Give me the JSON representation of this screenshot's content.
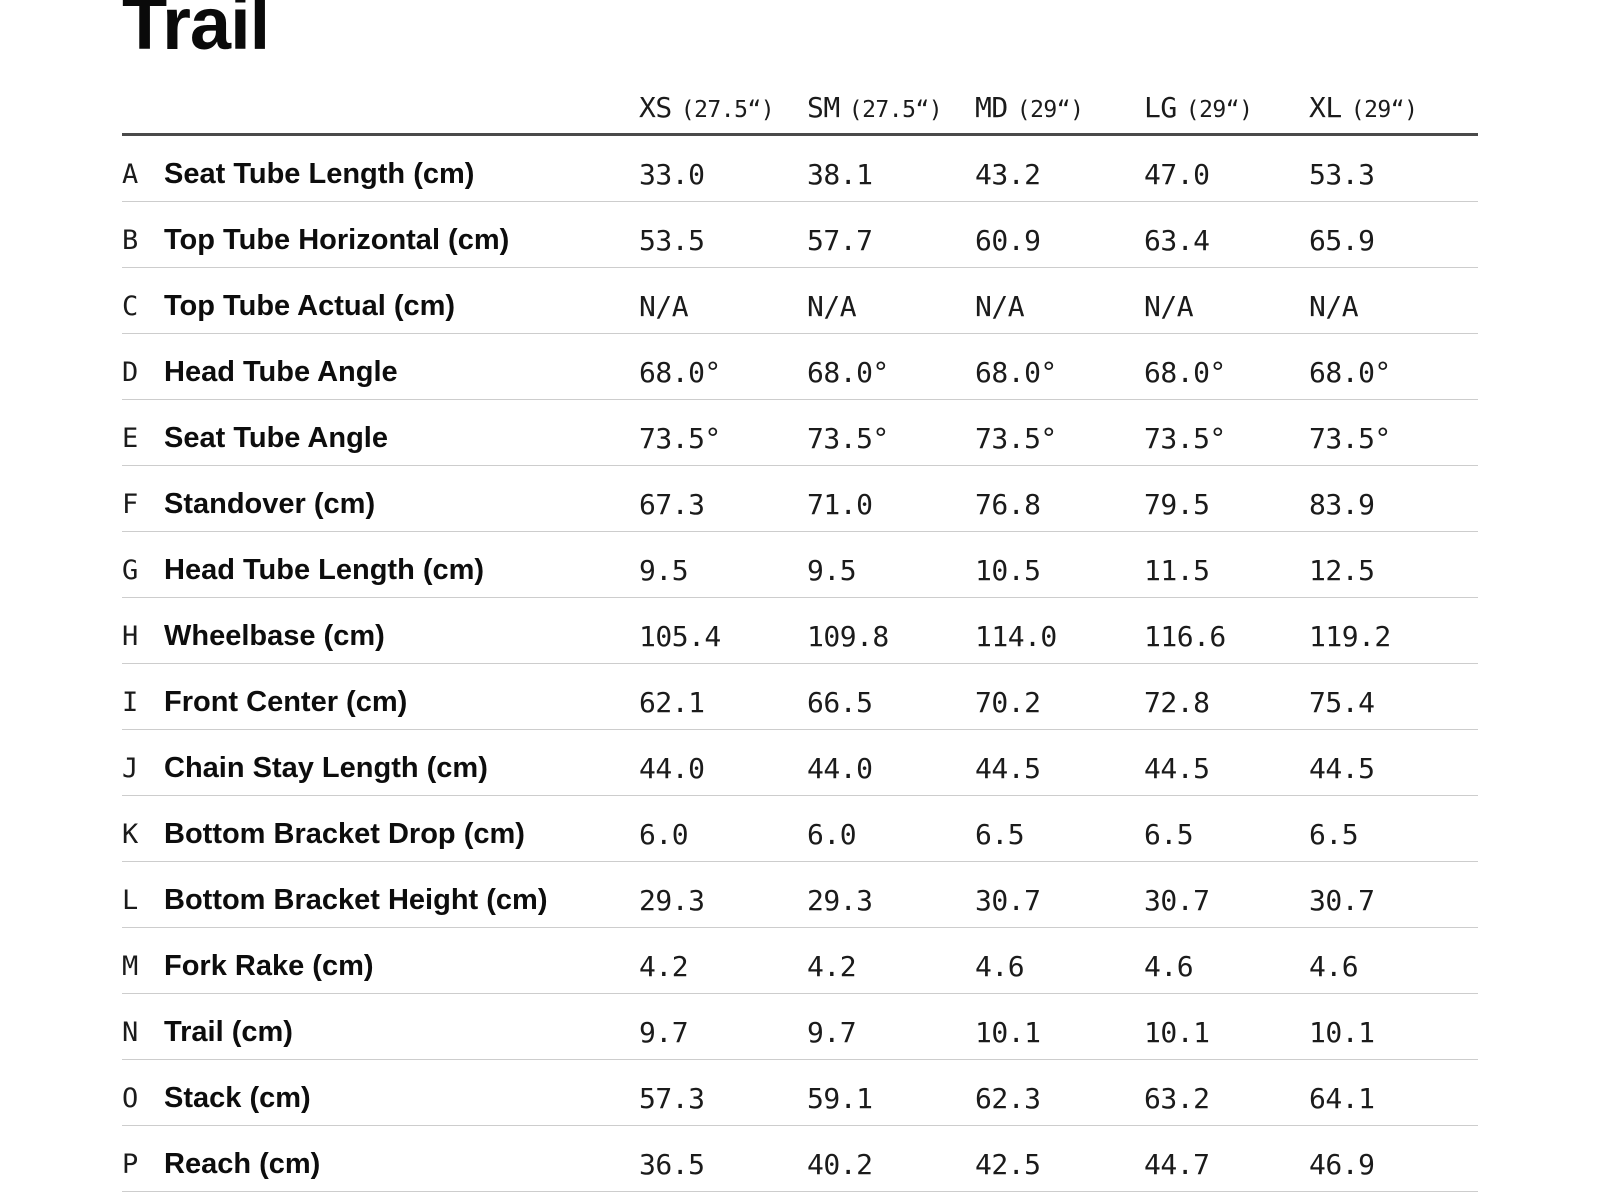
{
  "title": "Trail",
  "chart_data": {
    "type": "table",
    "title": "Trail",
    "columns": [
      {
        "size": "XS",
        "wheel": "(27.5“)"
      },
      {
        "size": "SM",
        "wheel": "(27.5“)"
      },
      {
        "size": "MD",
        "wheel": "(29“)"
      },
      {
        "size": "LG",
        "wheel": "(29“)"
      },
      {
        "size": "XL",
        "wheel": "(29“)"
      }
    ],
    "rows": [
      {
        "letter": "A",
        "label": "Seat Tube Length (cm)",
        "values": [
          "33.0",
          "38.1",
          "43.2",
          "47.0",
          "53.3"
        ]
      },
      {
        "letter": "B",
        "label": "Top Tube Horizontal (cm)",
        "values": [
          "53.5",
          "57.7",
          "60.9",
          "63.4",
          "65.9"
        ]
      },
      {
        "letter": "C",
        "label": "Top Tube Actual (cm)",
        "values": [
          "N/A",
          "N/A",
          "N/A",
          "N/A",
          "N/A"
        ]
      },
      {
        "letter": "D",
        "label": "Head Tube Angle",
        "values": [
          "68.0°",
          "68.0°",
          "68.0°",
          "68.0°",
          "68.0°"
        ]
      },
      {
        "letter": "E",
        "label": "Seat Tube Angle",
        "values": [
          "73.5°",
          "73.5°",
          "73.5°",
          "73.5°",
          "73.5°"
        ]
      },
      {
        "letter": "F",
        "label": "Standover (cm)",
        "values": [
          "67.3",
          "71.0",
          "76.8",
          "79.5",
          "83.9"
        ]
      },
      {
        "letter": "G",
        "label": "Head Tube Length (cm)",
        "values": [
          "9.5",
          "9.5",
          "10.5",
          "11.5",
          "12.5"
        ]
      },
      {
        "letter": "H",
        "label": "Wheelbase (cm)",
        "values": [
          "105.4",
          "109.8",
          "114.0",
          "116.6",
          "119.2"
        ]
      },
      {
        "letter": "I",
        "label": "Front Center (cm)",
        "values": [
          "62.1",
          "66.5",
          "70.2",
          "72.8",
          "75.4"
        ]
      },
      {
        "letter": "J",
        "label": "Chain Stay Length (cm)",
        "values": [
          "44.0",
          "44.0",
          "44.5",
          "44.5",
          "44.5"
        ]
      },
      {
        "letter": "K",
        "label": "Bottom Bracket Drop (cm)",
        "values": [
          "6.0",
          "6.0",
          "6.5",
          "6.5",
          "6.5"
        ]
      },
      {
        "letter": "L",
        "label": "Bottom Bracket Height (cm)",
        "values": [
          "29.3",
          "29.3",
          "30.7",
          "30.7",
          "30.7"
        ]
      },
      {
        "letter": "M",
        "label": "Fork Rake (cm)",
        "values": [
          "4.2",
          "4.2",
          "4.6",
          "4.6",
          "4.6"
        ]
      },
      {
        "letter": "N",
        "label": "Trail (cm)",
        "values": [
          "9.7",
          "9.7",
          "10.1",
          "10.1",
          "10.1"
        ]
      },
      {
        "letter": "O",
        "label": "Stack (cm)",
        "values": [
          "57.3",
          "59.1",
          "62.3",
          "63.2",
          "64.1"
        ]
      },
      {
        "letter": "P",
        "label": "Reach (cm)",
        "values": [
          "36.5",
          "40.2",
          "42.5",
          "44.7",
          "46.9"
        ]
      }
    ],
    "layout": {
      "text_color": "#161616",
      "header_rule_color": "#4a4a4a",
      "row_rule_color": "#cdcdcd",
      "background": "#ffffff"
    }
  }
}
